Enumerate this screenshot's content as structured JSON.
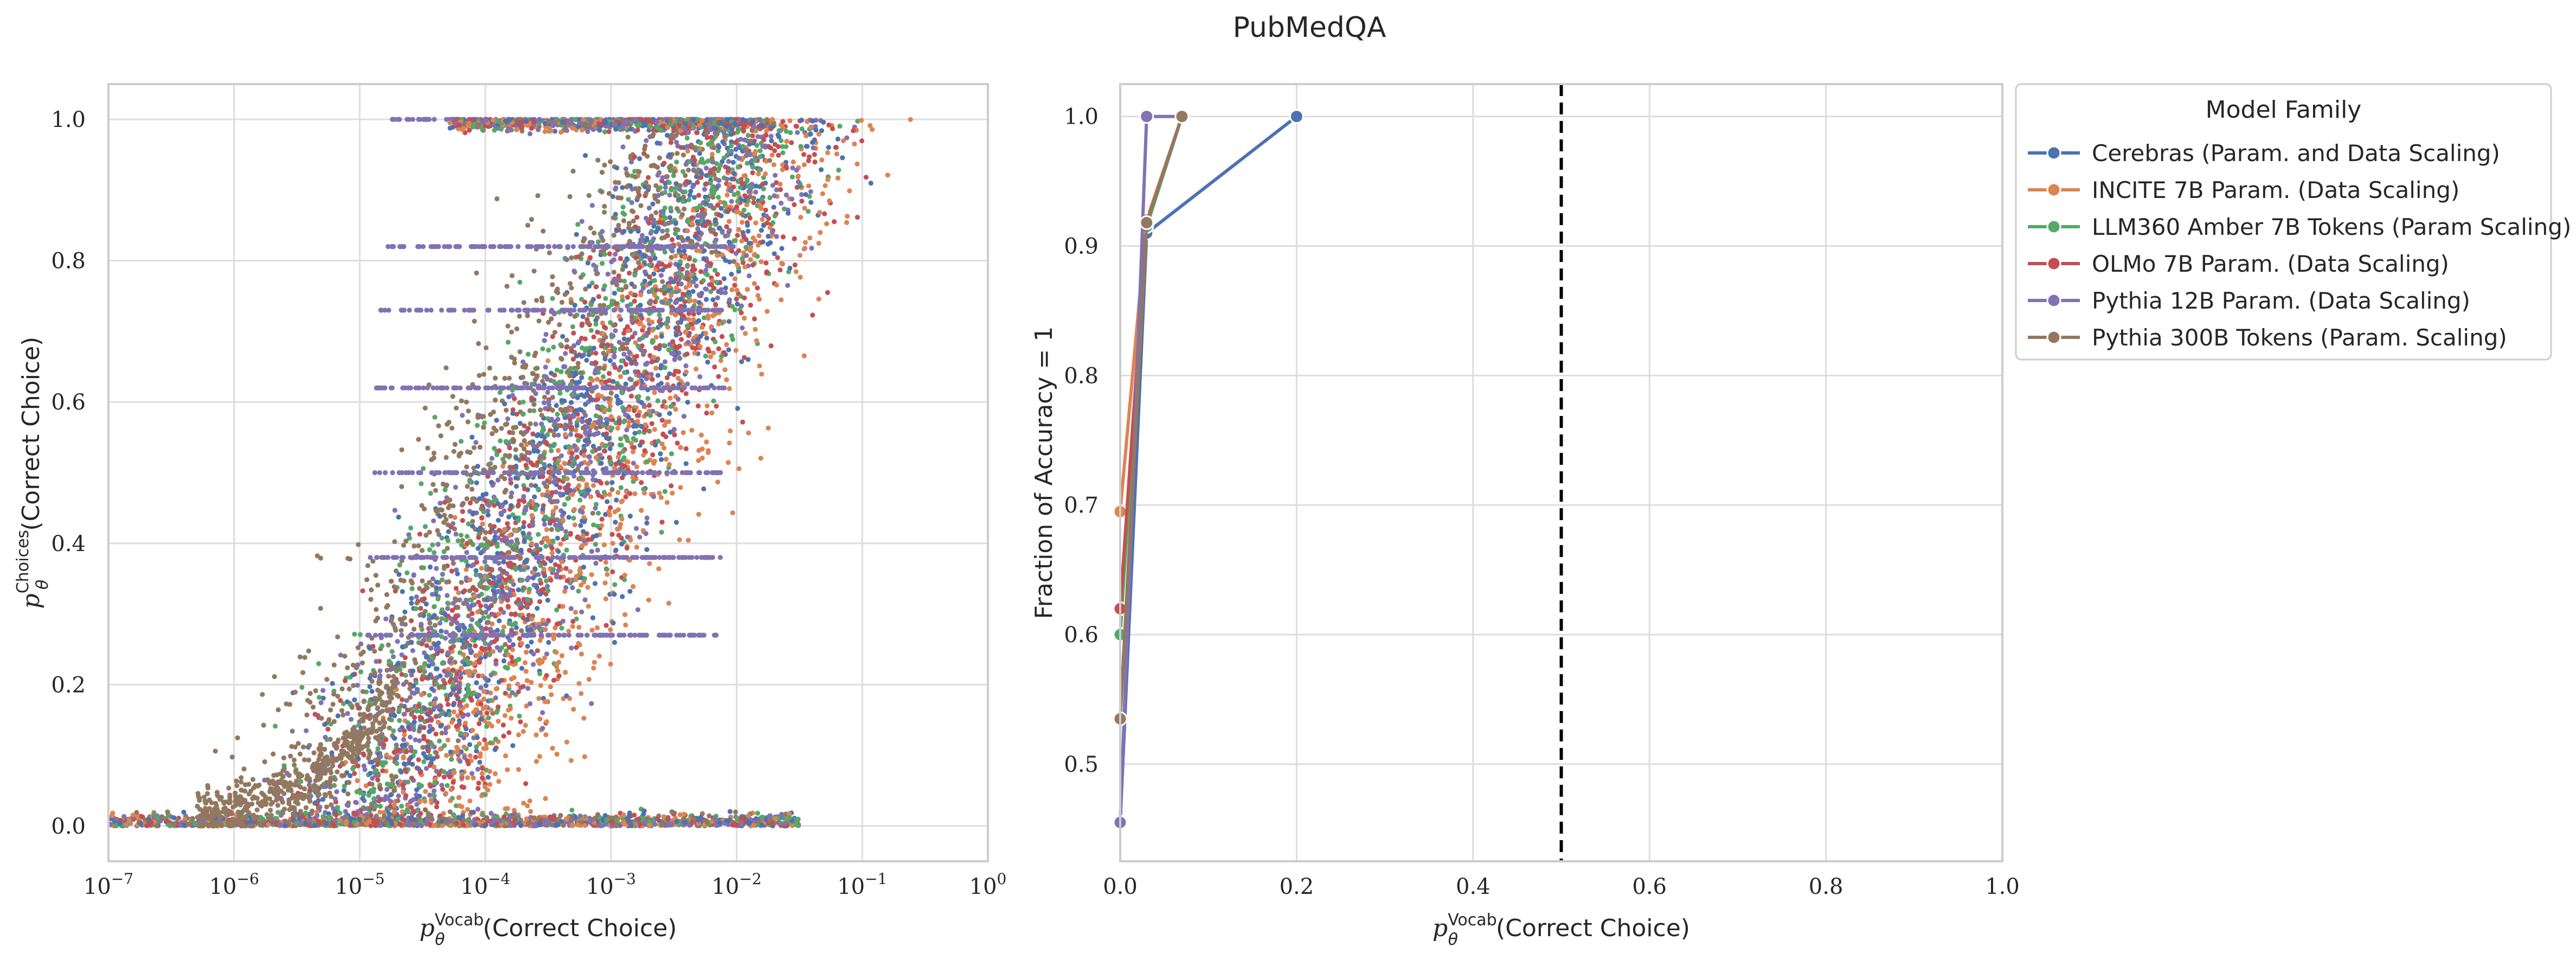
{
  "figure_title": "PubMedQA",
  "colors": {
    "Cerebras": "#4c72b0",
    "INCITE": "#dd8452",
    "LLM360": "#55a868",
    "OLMo": "#c44e52",
    "Pythia12B": "#8172b3",
    "Pythia300B": "#937860"
  },
  "chart_data": [
    {
      "type": "scatter",
      "xlabel": {
        "prefix": "p",
        "sub": "θ",
        "sup": "Vocab",
        "text": "(Correct Choice)"
      },
      "ylabel": {
        "prefix": "p",
        "sub": "θ",
        "sup": "Choices",
        "text": "(Correct Choice)"
      },
      "xscale": "log",
      "xlim": [
        1e-07,
        1
      ],
      "ylim": [
        -0.05,
        1.05
      ],
      "xtick_exponents": [
        -7,
        -6,
        -5,
        -4,
        -3,
        -2,
        -1,
        0
      ],
      "yticks": [
        "0.0",
        "0.2",
        "0.4",
        "0.6",
        "0.8",
        "1.0"
      ],
      "grid": true,
      "note": "dense cloud of several thousand points per model family; distribution summarized for rendering",
      "series": [
        "Cerebras",
        "INCITE",
        "LLM360",
        "OLMo",
        "Pythia12B",
        "Pythia300B"
      ]
    },
    {
      "type": "line",
      "xlabel": {
        "prefix": "p",
        "sub": "θ",
        "sup": "Vocab",
        "text": "(Correct Choice)"
      },
      "ylabel": "Fraction of Accuracy = 1",
      "xlim": [
        0.0,
        1.0
      ],
      "ylim": [
        0.425,
        1.025
      ],
      "xticks": [
        "0.0",
        "0.2",
        "0.4",
        "0.6",
        "0.8",
        "1.0"
      ],
      "yticks": [
        "0.5",
        "0.6",
        "0.7",
        "0.8",
        "0.9",
        "1.0"
      ],
      "vline_x": 0.5,
      "grid": true,
      "legend": {
        "title": "Model Family",
        "placement": "outside-right"
      },
      "series": [
        {
          "key": "Cerebras",
          "name": "Cerebras (Param. and Data Scaling)",
          "x": [
            0.0,
            0.03,
            0.2
          ],
          "y": [
            0.455,
            0.91,
            1.0
          ]
        },
        {
          "key": "INCITE",
          "name": "INCITE 7B Param. (Data Scaling)",
          "x": [
            0.0,
            0.03,
            0.07
          ],
          "y": [
            0.695,
            0.92,
            1.0
          ]
        },
        {
          "key": "LLM360",
          "name": "LLM360 Amber 7B Tokens (Param Scaling)",
          "x": [
            0.0,
            0.03,
            0.07
          ],
          "y": [
            0.6,
            0.915,
            1.0
          ]
        },
        {
          "key": "OLMo",
          "name": "OLMo 7B Param. (Data Scaling)",
          "x": [
            0.0,
            0.03,
            0.07
          ],
          "y": [
            0.62,
            0.918,
            1.0
          ]
        },
        {
          "key": "Pythia12B",
          "name": "Pythia 12B Param. (Data Scaling)",
          "x": [
            0.0,
            0.03,
            0.07
          ],
          "y": [
            0.455,
            1.0,
            1.0
          ]
        },
        {
          "key": "Pythia300B",
          "name": "Pythia 300B Tokens (Param. Scaling)",
          "x": [
            0.0,
            0.03,
            0.07
          ],
          "y": [
            0.535,
            0.918,
            1.0
          ]
        }
      ]
    }
  ]
}
